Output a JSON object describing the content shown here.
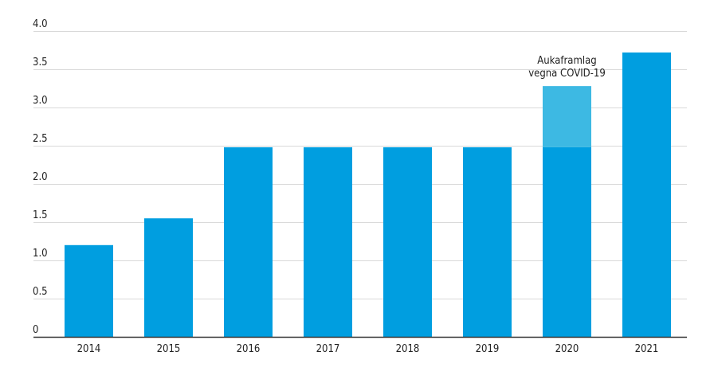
{
  "chart_data": {
    "type": "bar",
    "title": "",
    "xlabel": "",
    "ylabel": "",
    "ylim": [
      0,
      4.0
    ],
    "yticks": [
      "0",
      "0.5",
      "1.0",
      "1.5",
      "2.0",
      "2.5",
      "3.0",
      "3.5",
      "4.0"
    ],
    "categories": [
      "2014",
      "2015",
      "2016",
      "2017",
      "2018",
      "2019",
      "2020",
      "2021"
    ],
    "series": [
      {
        "values": [
          1.2,
          1.55,
          2.48,
          2.48,
          2.48,
          2.48,
          2.48,
          3.72
        ]
      },
      {
        "values": [
          0,
          0,
          0,
          0,
          0,
          0,
          0.8,
          0
        ]
      }
    ],
    "annotations": [
      {
        "category": "2020",
        "lines": [
          "Aukaframlag",
          "vegna COVID-19"
        ]
      }
    ],
    "colors": {
      "base": "#009ee0",
      "extra": "#3db9e3",
      "grid": "#d9d9d9",
      "axis": "#333333"
    },
    "grid": true,
    "legend": "none"
  }
}
